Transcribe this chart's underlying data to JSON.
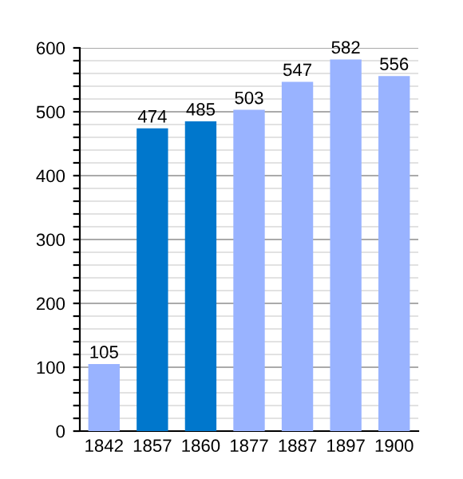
{
  "chart_data": {
    "type": "bar",
    "categories": [
      "1842",
      "1857",
      "1860",
      "1877",
      "1887",
      "1897",
      "1900"
    ],
    "values": [
      105,
      474,
      485,
      503,
      547,
      582,
      556
    ],
    "colors": [
      "#99b3ff",
      "#0077cc",
      "#0077cc",
      "#99b3ff",
      "#99b3ff",
      "#99b3ff",
      "#99b3ff"
    ],
    "ylim": [
      0,
      600
    ],
    "yticks": [
      0,
      {
        "value": 20,
        "label": null
      },
      {
        "value": 40,
        "label": null
      },
      {
        "value": 60,
        "label": null
      },
      {
        "value": 80,
        "label": null
      },
      100,
      {
        "value": 120,
        "label": null
      },
      {
        "value": 140,
        "label": null
      },
      {
        "value": 160,
        "label": null
      },
      {
        "value": 180,
        "label": null
      },
      200,
      {
        "value": 220,
        "label": null
      },
      {
        "value": 240,
        "label": null
      },
      {
        "value": 260,
        "label": null
      },
      {
        "value": 280,
        "label": null
      },
      300,
      {
        "value": 320,
        "label": null
      },
      {
        "value": 340,
        "label": null
      },
      {
        "value": 360,
        "label": null
      },
      {
        "value": 380,
        "label": null
      },
      400,
      {
        "value": 420,
        "label": null
      },
      {
        "value": 440,
        "label": null
      },
      {
        "value": 460,
        "label": null
      },
      {
        "value": 480,
        "label": null
      },
      500,
      {
        "value": 520,
        "label": null
      },
      {
        "value": 540,
        "label": null
      },
      {
        "value": 560,
        "label": null
      },
      {
        "value": 580,
        "label": null
      },
      600
    ],
    "grid": "y",
    "data_labels": true
  }
}
